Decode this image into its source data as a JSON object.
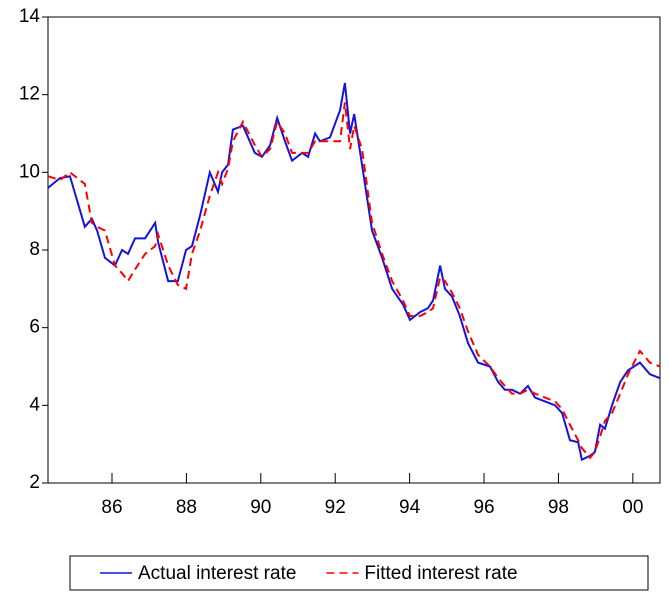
{
  "chart_data": {
    "type": "line",
    "x": [
      1984.28,
      1984.6,
      1984.87,
      1985.27,
      1985.46,
      1985.6,
      1985.81,
      1986.08,
      1986.27,
      1986.43,
      1986.62,
      1986.89,
      1987.16,
      1987.24,
      1987.51,
      1987.77,
      1987.99,
      1988.15,
      1988.37,
      1988.63,
      1988.85,
      1988.96,
      1989.12,
      1989.25,
      1989.52,
      1989.84,
      1990.03,
      1990.25,
      1990.44,
      1990.65,
      1990.84,
      1991.11,
      1991.27,
      1991.46,
      1991.59,
      1991.86,
      1992.13,
      1992.26,
      1992.4,
      1992.51,
      1992.72,
      1992.99,
      1993.26,
      1993.53,
      1993.82,
      1994.01,
      1994.28,
      1994.49,
      1994.63,
      1994.82,
      1994.95,
      1995.14,
      1995.35,
      1995.57,
      1995.84,
      1996.16,
      1996.38,
      1996.56,
      1996.75,
      1996.97,
      1997.18,
      1997.37,
      1997.64,
      1997.91,
      1998.1,
      1998.31,
      1998.53,
      1998.63,
      1998.85,
      1998.98,
      1999.12,
      1999.25,
      1999.44,
      1999.66,
      1999.87,
      2000.19,
      2000.46,
      2000.73
    ],
    "series": [
      {
        "name": "Actual interest rate",
        "color": "#1414dc",
        "dash": "solid",
        "values": [
          9.6,
          9.85,
          9.9,
          8.6,
          8.8,
          8.5,
          7.8,
          7.6,
          8.0,
          7.9,
          8.3,
          8.3,
          8.7,
          8.2,
          7.2,
          7.2,
          8.0,
          8.1,
          8.9,
          10.0,
          9.5,
          10.0,
          10.2,
          11.1,
          11.2,
          10.5,
          10.4,
          10.7,
          11.4,
          10.8,
          10.3,
          10.5,
          10.4,
          11.0,
          10.8,
          10.9,
          11.6,
          12.3,
          11.0,
          11.5,
          10.2,
          8.5,
          7.8,
          7.0,
          6.6,
          6.2,
          6.4,
          6.5,
          6.7,
          7.6,
          7.0,
          6.8,
          6.3,
          5.6,
          5.1,
          5.0,
          4.6,
          4.4,
          4.4,
          4.3,
          4.5,
          4.2,
          4.1,
          4.0,
          3.8,
          3.1,
          3.05,
          2.6,
          2.7,
          2.8,
          3.5,
          3.4,
          4.0,
          4.6,
          4.9,
          5.1,
          4.8,
          4.7
        ]
      },
      {
        "name": "Fitted interest rate",
        "color": "#ff0000",
        "dash": "dashed",
        "values": [
          9.9,
          9.8,
          10.0,
          9.7,
          8.7,
          8.6,
          8.5,
          7.6,
          7.4,
          7.2,
          7.5,
          7.9,
          8.1,
          8.4,
          7.6,
          7.1,
          7.0,
          7.9,
          8.5,
          9.4,
          10.0,
          9.7,
          10.1,
          10.8,
          11.3,
          10.7,
          10.4,
          10.6,
          11.3,
          11.0,
          10.5,
          10.5,
          10.5,
          10.8,
          10.8,
          10.8,
          10.8,
          11.8,
          10.6,
          11.2,
          10.6,
          8.7,
          7.9,
          7.2,
          6.7,
          6.3,
          6.3,
          6.4,
          6.5,
          7.3,
          7.2,
          6.9,
          6.5,
          5.9,
          5.3,
          5.0,
          4.7,
          4.5,
          4.3,
          4.3,
          4.4,
          4.3,
          4.2,
          4.1,
          3.9,
          3.5,
          3.1,
          2.9,
          2.65,
          2.8,
          3.2,
          3.6,
          3.8,
          4.3,
          4.8,
          5.4,
          5.1,
          5.0
        ]
      }
    ],
    "xlim": [
      1984.28,
      2000.73
    ],
    "xticks": [
      {
        "value": 1986,
        "label": "86"
      },
      {
        "value": 1988,
        "label": "88"
      },
      {
        "value": 1990,
        "label": "90"
      },
      {
        "value": 1992,
        "label": "92"
      },
      {
        "value": 1994,
        "label": "94"
      },
      {
        "value": 1996,
        "label": "96"
      },
      {
        "value": 1998,
        "label": "98"
      },
      {
        "value": 2000,
        "label": "00"
      }
    ],
    "ylim": [
      2,
      14
    ],
    "yticks": [
      2,
      4,
      6,
      8,
      10,
      12,
      14
    ],
    "grid": false,
    "legend": "bottom"
  }
}
